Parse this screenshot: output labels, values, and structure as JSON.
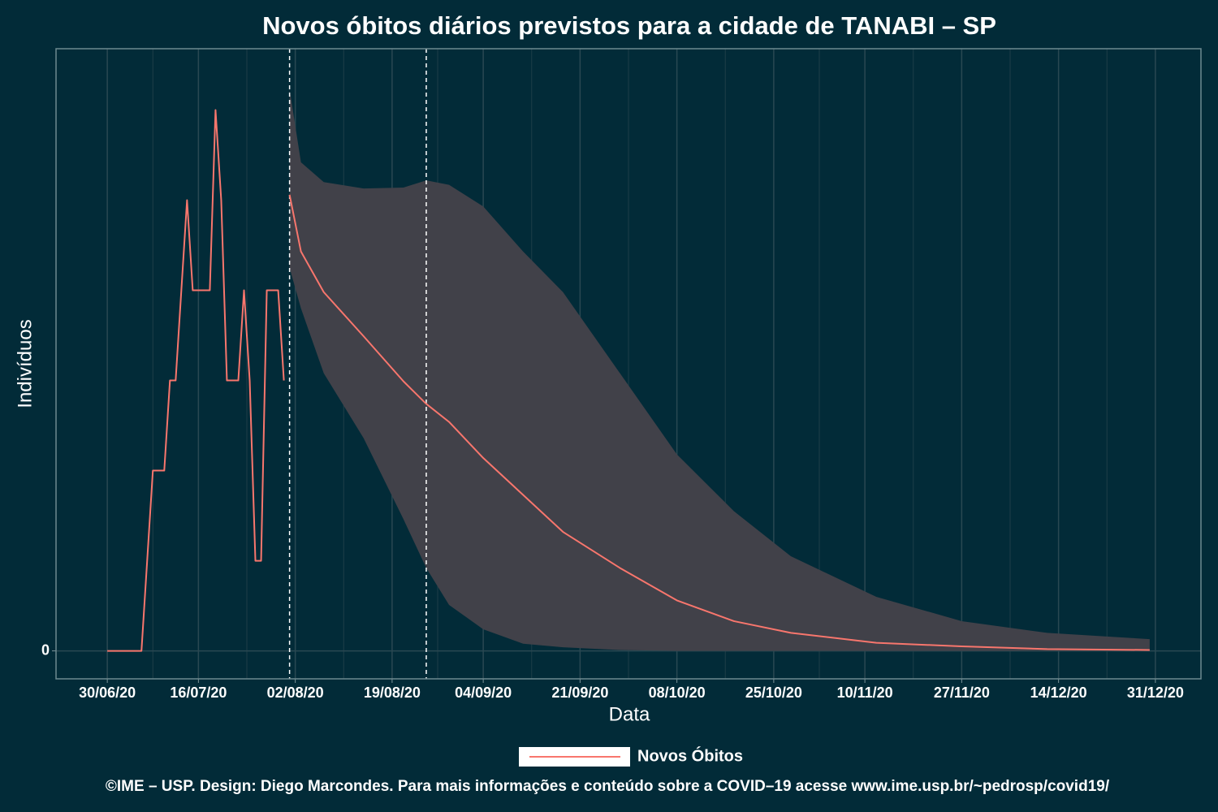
{
  "chart_data": {
    "type": "line",
    "title": "Novos óbitos diários previstos para a cidade de TANABI – SP",
    "x_label": "Data",
    "y_label": "Indivíduos",
    "footer": "©IME – USP. Design: Diego Marcondes. Para mais informações e conteúdo sobre a COVID–19 acesse www.ime.usp.br/~pedrosp/covid19/",
    "xlim": [
      "21/06/20",
      "08/01/21"
    ],
    "xticks": [
      "30/06/20",
      "16/07/20",
      "02/08/20",
      "19/08/20",
      "04/09/20",
      "21/09/20",
      "08/10/20",
      "25/10/20",
      "10/11/20",
      "27/11/20",
      "14/12/20",
      "31/12/20"
    ],
    "ylim": [
      -0.31,
      6.68
    ],
    "yticks": [
      0
    ],
    "grid": true,
    "vlines": [
      "01/08/20",
      "25/08/20"
    ],
    "band": {
      "color": "#414149",
      "x": [
        "01/08/20",
        "03/08/20",
        "07/08/20",
        "14/08/20",
        "21/08/20",
        "25/08/20",
        "29/08/20",
        "04/09/20",
        "11/09/20",
        "18/09/20",
        "28/09/20",
        "08/10/20",
        "18/10/20",
        "28/10/20",
        "12/11/20",
        "27/11/20",
        "12/12/20",
        "30/12/20"
      ],
      "lower": [
        4.25,
        3.8,
        3.08,
        2.36,
        1.46,
        0.92,
        0.51,
        0.24,
        0.08,
        0.04,
        0.01,
        0,
        0,
        0,
        0,
        0,
        0,
        0
      ],
      "upper": [
        6.23,
        5.42,
        5.2,
        5.13,
        5.14,
        5.22,
        5.17,
        4.93,
        4.43,
        3.98,
        3.08,
        2.18,
        1.55,
        1.05,
        0.6,
        0.33,
        0.2,
        0.13
      ]
    },
    "series": [
      {
        "name": "Novos Óbitos",
        "color": "#f8766d",
        "x": [
          "30/06/20",
          "01/07/20",
          "02/07/20",
          "03/07/20",
          "04/07/20",
          "05/07/20",
          "06/07/20",
          "07/07/20",
          "08/07/20",
          "09/07/20",
          "10/07/20",
          "11/07/20",
          "12/07/20",
          "13/07/20",
          "14/07/20",
          "15/07/20",
          "16/07/20",
          "17/07/20",
          "18/07/20",
          "19/07/20",
          "20/07/20",
          "21/07/20",
          "22/07/20",
          "23/07/20",
          "24/07/20",
          "25/07/20",
          "26/07/20",
          "27/07/20",
          "28/07/20",
          "29/07/20",
          "30/07/20",
          "31/07/20"
        ],
        "values": [
          0,
          0,
          0,
          0,
          0,
          0,
          0,
          1,
          2,
          2,
          2,
          3,
          3,
          4,
          5,
          4,
          4,
          4,
          4,
          6,
          5,
          3,
          3,
          3,
          4,
          3,
          1,
          1,
          4,
          4,
          4,
          3
        ]
      },
      {
        "color": "#f8766d",
        "x": [
          "01/08/20",
          "03/08/20",
          "07/08/20",
          "14/08/20",
          "21/08/20",
          "25/08/20",
          "29/08/20",
          "04/09/20",
          "11/09/20",
          "18/09/20",
          "28/09/20",
          "08/10/20",
          "18/10/20",
          "28/10/20",
          "12/11/20",
          "27/11/20",
          "12/12/20",
          "30/12/20"
        ],
        "values": [
          5.06,
          4.43,
          3.98,
          3.49,
          2.99,
          2.74,
          2.54,
          2.14,
          1.73,
          1.32,
          0.92,
          0.56,
          0.33,
          0.2,
          0.09,
          0.05,
          0.02,
          0.01
        ]
      }
    ]
  }
}
